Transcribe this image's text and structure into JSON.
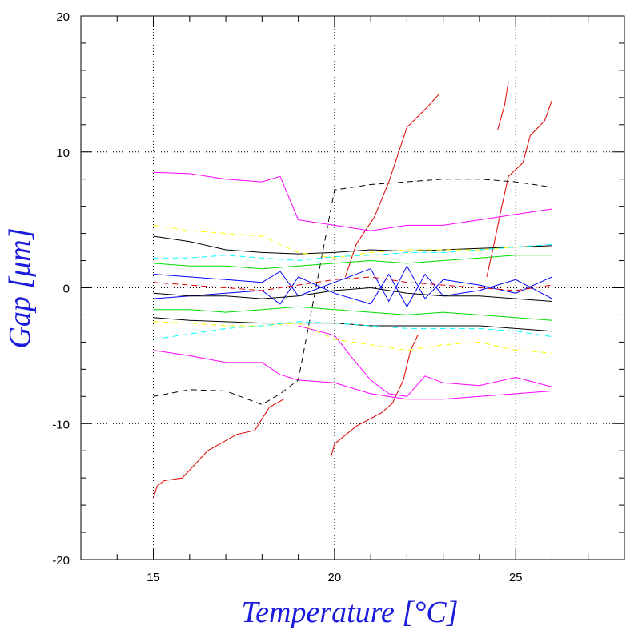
{
  "chart_data": {
    "type": "line",
    "title": "",
    "xlabel": "Temperature [°C]",
    "ylabel": "Gap [μm]",
    "xlim": [
      13,
      28
    ],
    "ylim": [
      -20,
      20
    ],
    "x_ticks": [
      {
        "value": 15,
        "label": "15"
      },
      {
        "value": 20,
        "label": "20"
      },
      {
        "value": 25,
        "label": "25"
      }
    ],
    "y_ticks": [
      {
        "value": 20,
        "label": "20"
      },
      {
        "value": 10,
        "label": "10"
      },
      {
        "value": 0,
        "label": "0"
      },
      {
        "value": -10,
        "label": "-10"
      },
      {
        "value": -20,
        "label": "-20"
      }
    ],
    "grid": true,
    "legend": "none",
    "colors": {
      "magenta": "#ff00ff",
      "red": "#dd0000",
      "black": "#000000",
      "blue": "#0000ff",
      "green": "#00dd00",
      "yellow": "#ffff00",
      "cyan": "#00ffff",
      "axis_title": "#1a1adc"
    },
    "series": [
      {
        "color": "red",
        "dash": false,
        "x": [
          15.0,
          15.1,
          15.3,
          15.8,
          16.5,
          17.3,
          17.8,
          18.2,
          18.6
        ],
        "y": [
          -15.5,
          -14.6,
          -14.2,
          -14.0,
          -12.0,
          -10.8,
          -10.5,
          -8.8,
          -8.2
        ]
      },
      {
        "color": "red",
        "dash": false,
        "x": [
          19.9,
          20.0,
          20.6,
          21.3,
          21.6,
          21.9,
          22.1,
          22.3
        ],
        "y": [
          -12.5,
          -11.5,
          -10.2,
          -9.2,
          -8.5,
          -6.8,
          -4.6,
          -3.5
        ]
      },
      {
        "color": "red",
        "dash": false,
        "x": [
          20.3,
          20.6,
          21.1,
          21.5,
          22.0,
          22.3,
          22.6,
          22.9
        ],
        "y": [
          0.8,
          3.2,
          5.2,
          7.8,
          11.8,
          12.6,
          13.4,
          14.3
        ]
      },
      {
        "color": "red",
        "dash": false,
        "x": [
          24.2,
          24.4,
          24.6,
          24.8,
          25.2,
          25.4,
          25.8,
          26.0
        ],
        "y": [
          0.8,
          3.2,
          5.8,
          8.2,
          9.2,
          11.2,
          12.3,
          13.8
        ]
      },
      {
        "color": "red",
        "dash": false,
        "x": [
          24.5,
          24.7,
          24.8
        ],
        "y": [
          11.6,
          13.5,
          15.2
        ]
      },
      {
        "color": "magenta",
        "dash": false,
        "x": [
          15.0,
          16.0,
          17.0,
          18.0,
          18.5,
          19.0,
          20.0,
          21.0,
          22.0,
          23.0,
          24.0,
          25.0,
          26.0
        ],
        "y": [
          8.5,
          8.4,
          8.0,
          7.8,
          8.2,
          5.0,
          4.6,
          4.2,
          4.6,
          4.6,
          5.0,
          5.4,
          5.8
        ]
      },
      {
        "color": "magenta",
        "dash": false,
        "x": [
          15.0,
          16.0,
          17.0,
          18.0,
          18.5,
          19.0,
          20.0,
          21.0,
          22.0,
          23.0,
          24.0,
          25.0,
          26.0
        ],
        "y": [
          -4.6,
          -5.0,
          -5.5,
          -5.5,
          -6.4,
          -6.8,
          -7.0,
          -7.8,
          -8.2,
          -8.2,
          -8.0,
          -7.8,
          -7.6
        ]
      },
      {
        "color": "magenta",
        "dash": false,
        "x": [
          19.0,
          20.0,
          20.5,
          21.0,
          21.5,
          22.0,
          22.5,
          23.0,
          24.0,
          25.0,
          26.0
        ],
        "y": [
          -2.8,
          -3.5,
          -5.2,
          -6.8,
          -7.8,
          -8.0,
          -6.5,
          -7.0,
          -7.2,
          -6.6,
          -7.3
        ]
      },
      {
        "color": "black",
        "dash": true,
        "x": [
          15.0,
          16.0,
          17.0,
          18.0,
          18.5,
          19.0,
          20.0,
          21.0,
          22.0,
          23.0,
          24.0,
          25.0,
          26.0
        ],
        "y": [
          -8.0,
          -7.5,
          -7.6,
          -8.6,
          -7.8,
          -6.8,
          7.2,
          7.6,
          7.8,
          8.0,
          8.0,
          7.8,
          7.4
        ]
      },
      {
        "color": "black",
        "dash": false,
        "x": [
          15.0,
          16.0,
          17.0,
          18.0,
          19.0,
          20.0,
          21.0,
          22.0,
          23.0,
          24.0,
          25.0,
          26.0
        ],
        "y": [
          3.8,
          3.4,
          2.8,
          2.6,
          2.5,
          2.6,
          2.8,
          2.7,
          2.8,
          2.9,
          3.0,
          3.1
        ]
      },
      {
        "color": "black",
        "dash": false,
        "x": [
          15.0,
          16.0,
          17.0,
          18.0,
          19.0,
          20.0,
          21.0,
          22.0,
          23.0,
          24.0,
          25.0,
          26.0
        ],
        "y": [
          -2.2,
          -2.4,
          -2.5,
          -2.6,
          -2.6,
          -2.6,
          -2.8,
          -2.8,
          -2.8,
          -2.8,
          -3.0,
          -3.2
        ]
      },
      {
        "color": "yellow",
        "dash": true,
        "x": [
          15.0,
          16.0,
          17.0,
          18.0,
          19.0,
          20.0,
          21.0,
          22.0,
          23.0,
          24.0,
          25.0,
          26.0
        ],
        "y": [
          4.6,
          4.2,
          4.0,
          3.8,
          2.6,
          2.2,
          2.6,
          2.8,
          2.8,
          2.8,
          3.0,
          3.0
        ]
      },
      {
        "color": "yellow",
        "dash": true,
        "x": [
          15.0,
          16.0,
          17.0,
          18.0,
          19.0,
          20.0,
          21.0,
          22.0,
          23.0,
          24.0,
          25.0,
          26.0
        ],
        "y": [
          -2.5,
          -2.6,
          -2.8,
          -2.8,
          -2.6,
          -3.8,
          -4.2,
          -4.6,
          -4.2,
          -4.0,
          -4.6,
          -4.8
        ]
      },
      {
        "color": "cyan",
        "dash": true,
        "x": [
          15.0,
          16.0,
          17.0,
          18.0,
          19.0,
          20.0,
          21.0,
          22.0,
          23.0,
          24.0,
          25.0,
          26.0
        ],
        "y": [
          -3.8,
          -3.4,
          -3.0,
          -2.8,
          -2.5,
          -2.6,
          -2.8,
          -3.0,
          -3.0,
          -3.0,
          -3.2,
          -3.6
        ]
      },
      {
        "color": "cyan",
        "dash": true,
        "x": [
          15.0,
          16.0,
          17.0,
          18.0,
          19.0,
          20.0,
          21.0,
          22.0,
          23.0,
          24.0,
          25.0,
          26.0
        ],
        "y": [
          2.2,
          2.2,
          2.4,
          2.2,
          2.0,
          2.3,
          2.4,
          2.6,
          2.6,
          2.8,
          3.0,
          3.2
        ]
      },
      {
        "color": "green",
        "dash": false,
        "x": [
          15.0,
          16.0,
          17.0,
          18.0,
          19.0,
          20.0,
          21.0,
          22.0,
          23.0,
          24.0,
          25.0,
          26.0
        ],
        "y": [
          1.8,
          1.6,
          1.6,
          1.4,
          1.6,
          1.8,
          2.0,
          1.8,
          2.0,
          2.2,
          2.4,
          2.4
        ]
      },
      {
        "color": "green",
        "dash": false,
        "x": [
          15.0,
          16.0,
          17.0,
          18.0,
          19.0,
          20.0,
          21.0,
          22.0,
          23.0,
          24.0,
          25.0,
          26.0
        ],
        "y": [
          -1.6,
          -1.6,
          -1.8,
          -1.6,
          -1.4,
          -1.6,
          -1.8,
          -2.0,
          -1.8,
          -2.0,
          -2.2,
          -2.4
        ]
      },
      {
        "color": "blue",
        "dash": false,
        "x": [
          15.0,
          16.0,
          17.0,
          18.0,
          18.5,
          19.0,
          20.0,
          21.0,
          21.5,
          22.0,
          22.5,
          23.0,
          24.0,
          25.0,
          26.0
        ],
        "y": [
          1.0,
          0.8,
          0.6,
          0.4,
          1.2,
          -0.6,
          0.4,
          1.4,
          -1.0,
          1.6,
          -0.8,
          0.6,
          0.2,
          -0.4,
          0.8
        ]
      },
      {
        "color": "blue",
        "dash": false,
        "x": [
          15.0,
          16.0,
          17.0,
          18.0,
          18.5,
          19.0,
          20.0,
          21.0,
          21.5,
          22.0,
          22.5,
          23.0,
          24.0,
          25.0,
          26.0
        ],
        "y": [
          -0.8,
          -0.6,
          -0.4,
          -0.2,
          -1.2,
          0.8,
          -0.4,
          -1.2,
          1.0,
          -1.4,
          1.0,
          -0.6,
          -0.2,
          0.6,
          -0.8
        ]
      },
      {
        "color": "red",
        "dash": true,
        "x": [
          15.0,
          16.0,
          17.0,
          18.0,
          19.0,
          20.0,
          21.0,
          22.0,
          23.0,
          24.0,
          25.0,
          26.0
        ],
        "y": [
          0.4,
          0.2,
          0.0,
          -0.2,
          0.2,
          0.6,
          0.8,
          0.4,
          0.2,
          0.0,
          -0.2,
          0.2
        ]
      },
      {
        "color": "black",
        "dash": false,
        "x": [
          15.0,
          16.0,
          17.0,
          18.0,
          19.0,
          20.0,
          21.0,
          22.0,
          23.0,
          24.0,
          25.0,
          26.0
        ],
        "y": [
          -0.4,
          -0.6,
          -0.6,
          -0.8,
          -0.6,
          -0.2,
          0.0,
          -0.4,
          -0.6,
          -0.6,
          -0.8,
          -1.0
        ]
      }
    ]
  }
}
